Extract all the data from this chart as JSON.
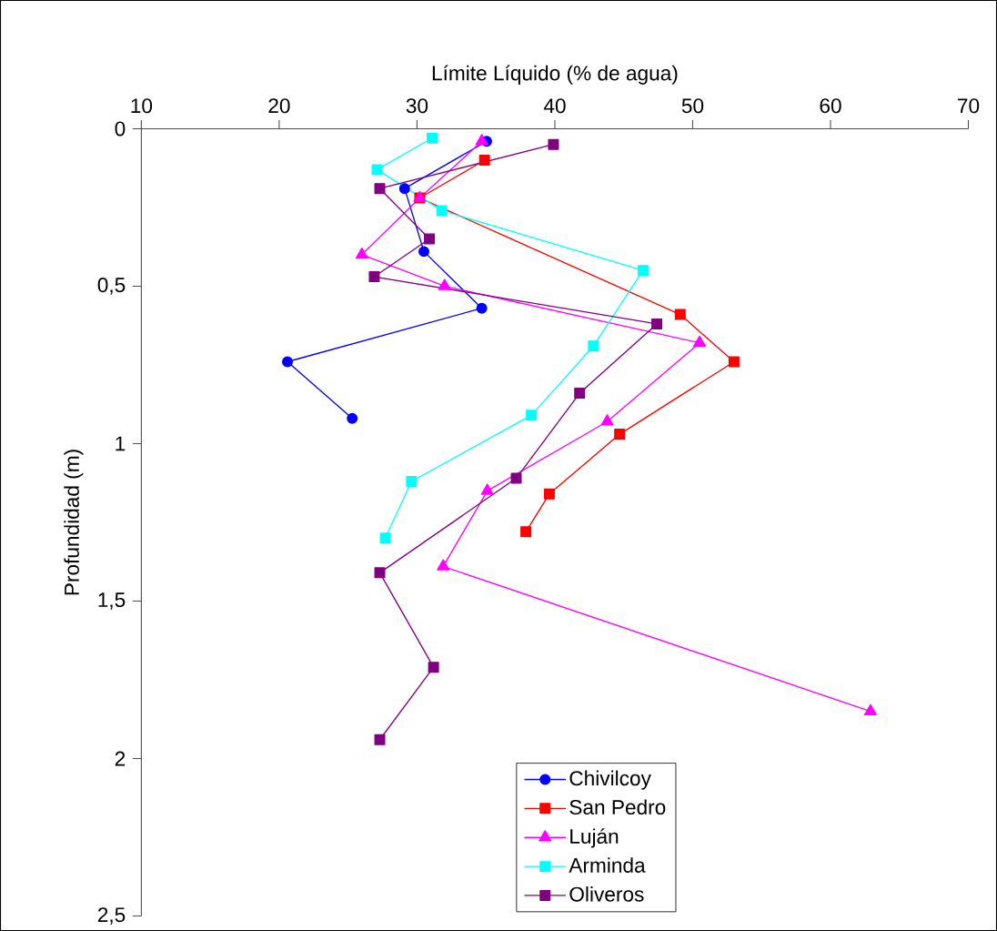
{
  "chart_data": {
    "type": "line",
    "xlabel": "Límite Líquido (% de agua)",
    "ylabel": "Profundidad (m)",
    "xlim": [
      10,
      70
    ],
    "xticks": [
      10,
      20,
      30,
      40,
      50,
      60,
      70
    ],
    "ylim": [
      2.5,
      0
    ],
    "yticks": [
      {
        "value": 0,
        "label": "0"
      },
      {
        "value": 0.5,
        "label": "0,5"
      },
      {
        "value": 1,
        "label": "1"
      },
      {
        "value": 1.5,
        "label": "1,5"
      },
      {
        "value": 2,
        "label": "2"
      },
      {
        "value": 2.5,
        "label": "2,5"
      }
    ],
    "grid": false,
    "legend": "bottom",
    "line_style": "solid",
    "series": [
      {
        "name": "Chivilcoy",
        "color": "#0000ff",
        "marker": "circle",
        "x": [
          35.05,
          29.1,
          30.5,
          34.7,
          20.6,
          25.3
        ],
        "values": [
          0.04,
          0.19,
          0.39,
          0.57,
          0.74,
          0.92
        ]
      },
      {
        "name": "San Pedro",
        "color": "#ff0000",
        "marker": "square",
        "x": [
          34.9,
          30.2,
          49.1,
          53.0,
          44.7,
          39.6,
          37.9
        ],
        "values": [
          0.1,
          0.22,
          0.59,
          0.74,
          0.97,
          1.16,
          1.28
        ]
      },
      {
        "name": "Luján",
        "color": "#ff00ff",
        "marker": "triangle",
        "x": [
          34.7,
          30.2,
          26.0,
          32.0,
          50.5,
          43.8,
          35.1,
          31.9,
          62.9
        ],
        "values": [
          0.04,
          0.22,
          0.4,
          0.5,
          0.68,
          0.93,
          1.15,
          1.39,
          1.85
        ]
      },
      {
        "name": "Arminda",
        "color": "#00ffff",
        "marker": "square",
        "x": [
          31.1,
          27.1,
          31.8,
          46.4,
          42.8,
          38.3,
          29.6,
          27.7
        ],
        "values": [
          0.03,
          0.13,
          0.26,
          0.45,
          0.69,
          0.91,
          1.12,
          1.3
        ]
      },
      {
        "name": "Oliveros",
        "color": "#800080",
        "marker": "square",
        "x": [
          39.9,
          27.3,
          30.9,
          26.9,
          47.4,
          41.8,
          37.2,
          27.3,
          31.2,
          27.3
        ],
        "values": [
          0.05,
          0.19,
          0.35,
          0.47,
          0.62,
          0.84,
          1.11,
          1.41,
          1.71,
          1.94
        ]
      }
    ]
  }
}
